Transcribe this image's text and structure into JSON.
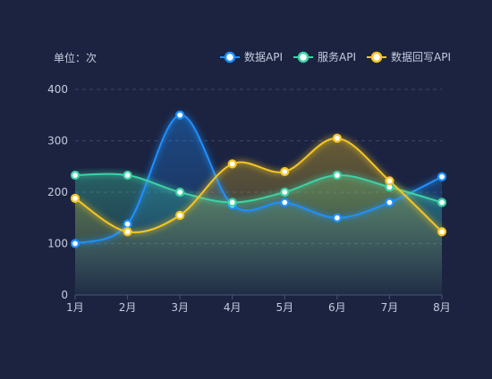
{
  "unit_label": "单位：次",
  "colors": {
    "background": "#1b2341",
    "axis_text": "#c5cbdc",
    "grid": "#3a4466",
    "axis_line": "#4a5478"
  },
  "chart_data": {
    "type": "line",
    "categories": [
      "1月",
      "2月",
      "3月",
      "4月",
      "5月",
      "6月",
      "7月",
      "8月"
    ],
    "ylim": [
      0,
      400
    ],
    "yticks": [
      "0",
      "100",
      "200",
      "300",
      "400"
    ],
    "smooth": true,
    "area_fill": true,
    "grid": true,
    "legend_position": "top-right",
    "series": [
      {
        "name": "数据API",
        "color": "#1e90ff",
        "values": [
          100,
          138,
          350,
          175,
          180,
          150,
          180,
          230
        ]
      },
      {
        "name": "服务API",
        "color": "#3fd2a5",
        "values": [
          233,
          233,
          200,
          180,
          200,
          233,
          210,
          180
        ]
      },
      {
        "name": "数据回写API",
        "color": "#f5c623",
        "values": [
          188,
          123,
          155,
          255,
          240,
          305,
          222,
          123
        ]
      }
    ]
  }
}
